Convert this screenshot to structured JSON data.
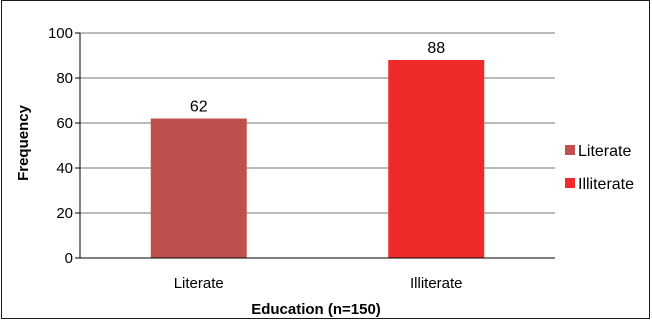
{
  "chart_data": {
    "type": "bar",
    "categories": [
      "Literate",
      "Illiterate"
    ],
    "values": [
      62,
      88
    ],
    "data_labels": [
      "62",
      "88"
    ],
    "colors": [
      "#c0504d",
      "#ee2a2a"
    ],
    "xlabel": "Education (n=150)",
    "ylabel": "Frequency",
    "ylim": [
      0,
      100
    ],
    "yticks": [
      "0",
      "20",
      "40",
      "60",
      "80",
      "100"
    ],
    "grid": true,
    "legend": {
      "placement": "right",
      "entries": [
        "Literate",
        "Illiterate"
      ]
    }
  }
}
